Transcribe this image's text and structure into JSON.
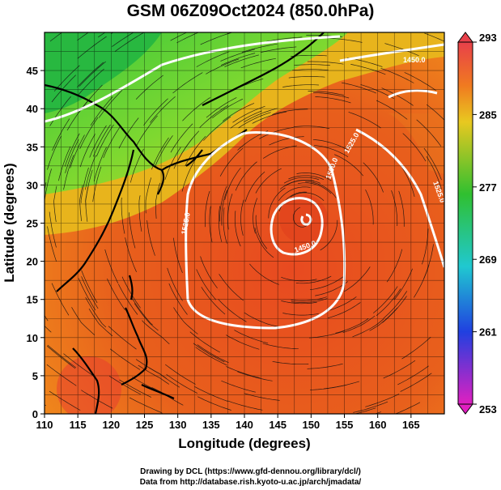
{
  "title": "GSM 06Z09Oct2024 (850.0hPa)",
  "x_axis": {
    "label": "Longitude (degrees)",
    "range": [
      110,
      170
    ],
    "ticks": [
      "110",
      "115",
      "120",
      "125",
      "130",
      "135",
      "140",
      "145",
      "150",
      "155",
      "160",
      "165"
    ]
  },
  "y_axis": {
    "label": "Latitude  (degrees)",
    "range": [
      0,
      50
    ],
    "ticks": [
      "0",
      "5",
      "10",
      "15",
      "20",
      "25",
      "30",
      "35",
      "40",
      "45"
    ]
  },
  "colorbar": {
    "labels": [
      "293",
      "285",
      "277",
      "269",
      "261",
      "253"
    ],
    "range": [
      253,
      293
    ],
    "colors": {
      "top": "#e8404a",
      "orange": "#f07a20",
      "yellow": "#e8c820",
      "green": "#30c030",
      "cyan": "#20c8d0",
      "blue": "#2040e0",
      "bottom": "#e020c0"
    }
  },
  "contours": {
    "labels": [
      "1450.0",
      "1525.0",
      "1500.0",
      "1525.0",
      "1450.0",
      "1525.0"
    ],
    "color": "#ffffff"
  },
  "credits": {
    "line1": "Drawing by DCL (https://www.gfd-dennou.org/library/dcl/)",
    "line2": "Data from http://database.rish.kyoto-u.ac.jp/arch/jmadata/"
  }
}
